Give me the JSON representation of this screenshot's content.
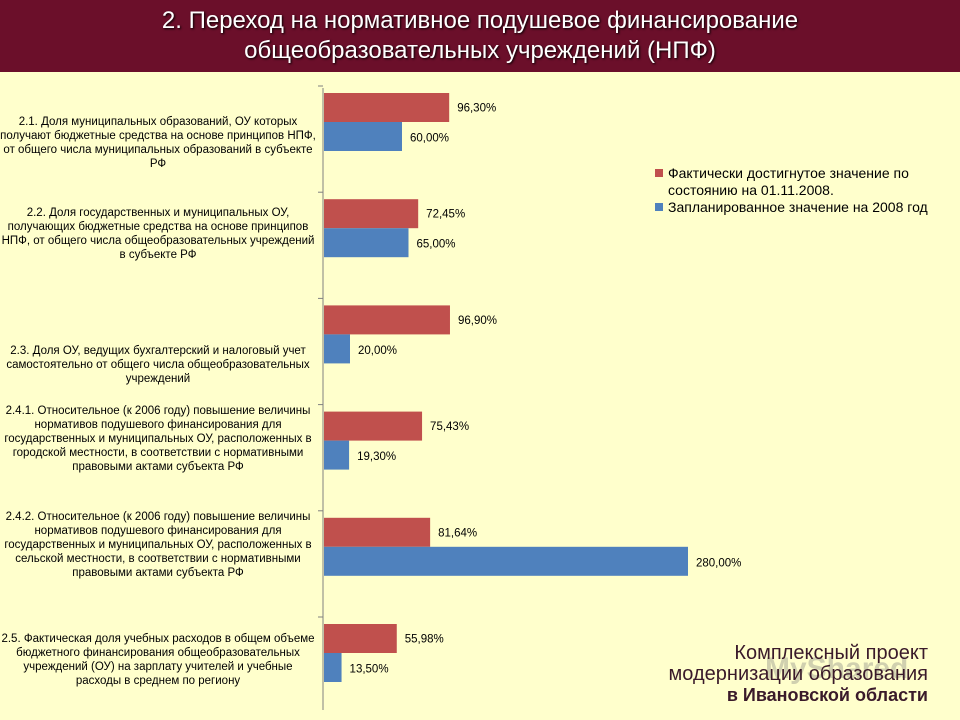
{
  "header": {
    "title_line1": "2. Переход на нормативное подушевое финансирование",
    "title_line2": "общеобразовательных учреждений (НПФ)"
  },
  "chart_data": {
    "type": "bar",
    "orientation": "horizontal",
    "categories": [
      "2.1.  Доля муниципальных  образований, ОУ которых получают бюджетные средства на основе принципов НПФ, от общего числа муниципальных  образований в субъекте РФ",
      "2.2. Доля государственных и муниципальных  ОУ, получающих бюджетные средства на основе принципов НПФ, от общего числа общеобразовательных учреждений в субъекте РФ",
      "2.3. Доля ОУ, ведущих бухгалтерский и налоговый учет самостоятельно от общего числа общеобразовательных учреждений",
      "2.4.1. Относительное (к 2006 году) повышение величины нормативов подушевого финансирования для государственных и муниципальных  ОУ, расположенных в городской местности, в соответствии с нормативными правовыми актами субъекта РФ",
      "2.4.2. Относительное  (к 2006 году) повышение величины нормативов подушевого финансирования для государственных и муниципальных  ОУ, расположенных в сельской местности, в соответствии с нормативными правовыми актами субъекта РФ",
      "2.5. Фактическая доля учебных расходов в общем объеме бюджетного финансирования общеобразовательных учреждений (ОУ)  на зарплату учителей и учебные расходы в среднем по региону"
    ],
    "series": [
      {
        "name": "Фактически достигнутое значение по состоянию на 01.11.2008.",
        "color": "#c0504d",
        "values": [
          96.3,
          72.45,
          96.9,
          75.43,
          81.64,
          55.98
        ],
        "labels": [
          "96,30%",
          "72,45%",
          "96,90%",
          "75,43%",
          "81,64%",
          "55,98%"
        ]
      },
      {
        "name": "Запланированное значение на 2008 год",
        "color": "#4f81bd",
        "values": [
          60.0,
          65.0,
          20.0,
          19.3,
          280.0,
          13.5
        ],
        "labels": [
          "60,00%",
          "65,00%",
          "20,00%",
          "19,30%",
          "280,00%",
          "13,50%"
        ]
      }
    ],
    "xlim": [
      0,
      300
    ],
    "grid": false,
    "legend": "right"
  },
  "footer": {
    "line1": "Комплексный проект",
    "line2": "модернизации образования",
    "line3": "в Ивановской области"
  },
  "watermark": "MyShared"
}
